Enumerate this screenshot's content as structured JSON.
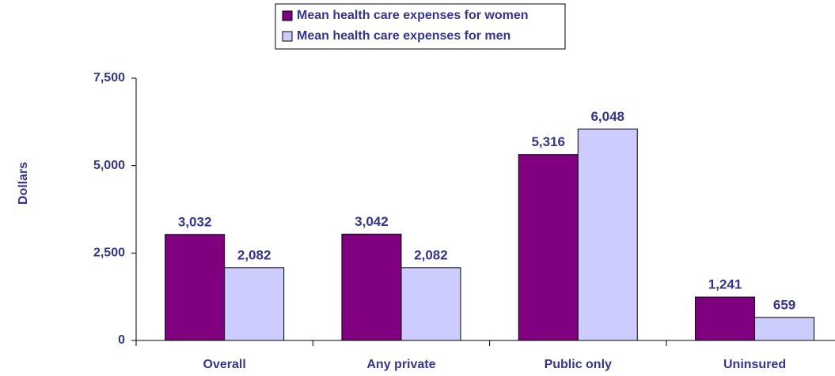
{
  "chart_data": {
    "type": "bar",
    "y_label": "Dollars",
    "categories": [
      "Overall",
      "Any private",
      "Public only",
      "Uninsured"
    ],
    "series": [
      {
        "name": "Mean health care expenses for women",
        "color": "#800080",
        "values": [
          3032,
          3042,
          5316,
          1241
        ],
        "value_labels": [
          "3,032",
          "3,042",
          "5,316",
          "1,241"
        ]
      },
      {
        "name": "Mean health care expenses for men",
        "color": "#ccccff",
        "values": [
          2082,
          2082,
          6048,
          659
        ],
        "value_labels": [
          "2,082",
          "2,082",
          "6,048",
          "659"
        ]
      }
    ],
    "ylim": [
      0,
      7500
    ],
    "yticks": [
      0,
      {
        "value": 2500,
        "label": "2,500"
      },
      {
        "value": 5000,
        "label": "5,000"
      },
      {
        "value": 7500,
        "label": "7,500"
      }
    ],
    "grid": false
  }
}
